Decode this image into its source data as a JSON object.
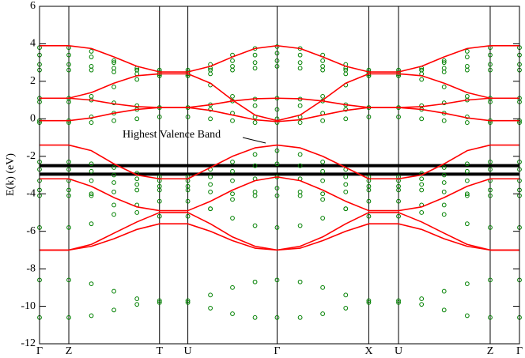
{
  "chart_data": {
    "type": "line",
    "ylabel": "E(k) (eV)",
    "annotation": "Highest Valence Band",
    "annotation_color": "#008000",
    "xlim": [
      0,
      1
    ],
    "ylim": [
      -12,
      6
    ],
    "yticks": [
      -12,
      -10,
      -8,
      -6,
      -4,
      -2,
      0,
      2,
      4,
      6
    ],
    "xticks": [
      {
        "value": 0,
        "label": "Γ"
      },
      {
        "value": 0.061,
        "label": "Z"
      },
      {
        "value": 0.25,
        "label": "T"
      },
      {
        "value": 0.309,
        "label": "U"
      },
      {
        "value": 0.495,
        "label": "Γ"
      },
      {
        "value": 0.686,
        "label": "X"
      },
      {
        "value": 0.748,
        "label": "U"
      },
      {
        "value": 0.939,
        "label": "Z"
      },
      {
        "value": 1,
        "label": "Γ"
      }
    ],
    "xgrid": true,
    "hlines": {
      "color": "#000000",
      "values": [
        -2.5,
        -2.95
      ]
    },
    "x": [
      0,
      0.061,
      0.108,
      0.155,
      0.203,
      0.25,
      0.309,
      0.356,
      0.402,
      0.449,
      0.495,
      0.543,
      0.59,
      0.638,
      0.686,
      0.748,
      0.796,
      0.843,
      0.891,
      0.939,
      1
    ],
    "series": [
      {
        "style": "markers",
        "color": "#008000",
        "values": [
          3.8,
          3.8,
          3.6,
          3.1,
          2.7,
          2.6,
          2.6,
          2.9,
          3.4,
          3.75,
          3.85,
          3.75,
          3.4,
          2.9,
          2.6,
          2.6,
          2.7,
          3.1,
          3.6,
          3.8,
          3.8
        ]
      },
      {
        "style": "markers",
        "color": "#008000",
        "values": [
          3.4,
          3.4,
          3.3,
          3.0,
          2.6,
          2.4,
          2.4,
          2.7,
          3.1,
          3.4,
          3.5,
          3.4,
          3.1,
          2.7,
          2.4,
          2.4,
          2.6,
          3.0,
          3.3,
          3.4,
          3.4
        ]
      },
      {
        "style": "markers",
        "color": "#008000",
        "values": [
          2.9,
          2.9,
          2.8,
          2.7,
          2.6,
          2.5,
          2.5,
          2.6,
          2.8,
          3.0,
          3.1,
          3.0,
          2.8,
          2.6,
          2.5,
          2.5,
          2.6,
          2.7,
          2.8,
          2.9,
          2.9
        ]
      },
      {
        "style": "markers",
        "color": "#008000",
        "values": [
          2.6,
          2.6,
          2.6,
          2.5,
          2.4,
          2.3,
          2.3,
          2.4,
          2.6,
          2.7,
          2.8,
          2.7,
          2.6,
          2.4,
          2.3,
          2.3,
          2.4,
          2.5,
          2.6,
          2.6,
          2.6
        ]
      },
      {
        "style": "markers",
        "color": "#008000",
        "values": [
          1.1,
          1.1,
          1.0,
          0.85,
          0.7,
          0.6,
          0.6,
          0.75,
          0.95,
          1.05,
          1.1,
          1.05,
          0.95,
          0.75,
          0.6,
          0.6,
          0.7,
          0.85,
          1.0,
          1.1,
          1.1
        ]
      },
      {
        "style": "markers",
        "color": "#008000",
        "values": [
          0.9,
          0.9,
          1.2,
          1.7,
          2.1,
          2.3,
          2.3,
          1.8,
          1.2,
          0.7,
          0.5,
          0.7,
          1.2,
          1.8,
          2.3,
          2.3,
          2.1,
          1.7,
          1.2,
          0.9,
          0.9
        ]
      },
      {
        "style": "markers",
        "color": "#008000",
        "values": [
          -0.1,
          -0.1,
          0.1,
          0.3,
          0.5,
          0.6,
          0.6,
          0.5,
          0.3,
          0.1,
          0.0,
          0.1,
          0.3,
          0.5,
          0.6,
          0.6,
          0.5,
          0.3,
          0.1,
          -0.1,
          -0.1
        ]
      },
      {
        "style": "markers",
        "color": "#008000",
        "values": [
          -0.2,
          -0.2,
          -0.2,
          -0.1,
          0.0,
          0.1,
          0.1,
          0.0,
          -0.1,
          -0.2,
          -0.2,
          -0.2,
          -0.1,
          0.0,
          0.1,
          0.1,
          0.0,
          -0.1,
          -0.2,
          -0.2,
          -0.2
        ]
      },
      {
        "style": "markers",
        "color": "#008000",
        "values": [
          -2.3,
          -2.3,
          -2.4,
          -2.6,
          -2.9,
          -3.1,
          -3.1,
          -2.7,
          -2.3,
          -1.9,
          -1.7,
          -1.9,
          -2.3,
          -2.7,
          -3.1,
          -3.1,
          -2.9,
          -2.6,
          -2.4,
          -2.3,
          -2.3
        ]
      },
      {
        "style": "markers",
        "color": "#008000",
        "values": [
          -2.7,
          -2.7,
          -2.8,
          -3.0,
          -3.2,
          -3.3,
          -3.3,
          -3.1,
          -2.8,
          -2.5,
          -2.4,
          -2.5,
          -2.8,
          -3.1,
          -3.3,
          -3.3,
          -3.2,
          -3.0,
          -2.8,
          -2.7,
          -2.7
        ]
      },
      {
        "style": "markers",
        "color": "#008000",
        "values": [
          -3.3,
          -3.3,
          -3.3,
          -3.4,
          -3.5,
          -3.6,
          -3.6,
          -3.5,
          -3.3,
          -3.2,
          -3.1,
          -3.2,
          -3.3,
          -3.5,
          -3.6,
          -3.6,
          -3.5,
          -3.4,
          -3.3,
          -3.3,
          -3.3
        ]
      },
      {
        "style": "markers",
        "color": "#008000",
        "values": [
          -4.1,
          -4.1,
          -4.0,
          -3.9,
          -3.8,
          -3.8,
          -3.8,
          -3.9,
          -4.0,
          -4.1,
          -4.1,
          -4.1,
          -4.0,
          -3.9,
          -3.8,
          -3.8,
          -3.8,
          -3.9,
          -4.0,
          -4.1,
          -4.1
        ]
      },
      {
        "style": "markers",
        "color": "#008000",
        "values": [
          -5.8,
          -5.8,
          -5.6,
          -5.1,
          -4.6,
          -4.4,
          -4.4,
          -4.8,
          -5.3,
          -5.7,
          -5.8,
          -5.7,
          -5.3,
          -4.8,
          -4.4,
          -4.4,
          -4.6,
          -5.1,
          -5.6,
          -5.8,
          -5.8
        ]
      },
      {
        "style": "markers",
        "color": "#008000",
        "values": [
          -3.8,
          -3.8,
          -4.1,
          -4.6,
          -5.0,
          -5.2,
          -5.2,
          -4.8,
          -4.3,
          -3.9,
          -3.7,
          -3.9,
          -4.3,
          -4.8,
          -5.2,
          -5.2,
          -5.0,
          -4.6,
          -4.1,
          -3.8,
          -3.8
        ]
      },
      {
        "style": "markers",
        "color": "#008000",
        "values": [
          -8.6,
          -8.6,
          -8.8,
          -9.2,
          -9.6,
          -9.7,
          -9.7,
          -9.4,
          -9.0,
          -8.7,
          -8.6,
          -8.7,
          -9.0,
          -9.4,
          -9.7,
          -9.7,
          -9.6,
          -9.2,
          -8.8,
          -8.6,
          -8.6
        ]
      },
      {
        "style": "markers",
        "color": "#008000",
        "values": [
          -10.6,
          -10.6,
          -10.5,
          -10.2,
          -9.9,
          -9.8,
          -9.8,
          -10.1,
          -10.4,
          -10.6,
          -10.6,
          -10.6,
          -10.4,
          -10.1,
          -9.8,
          -9.8,
          -9.9,
          -10.2,
          -10.5,
          -10.6,
          -10.6
        ]
      },
      {
        "style": "line",
        "color": "#ff0000",
        "values": [
          3.9,
          3.9,
          3.75,
          3.3,
          2.8,
          2.5,
          2.5,
          2.8,
          3.3,
          3.75,
          3.9,
          3.75,
          3.3,
          2.8,
          2.5,
          2.5,
          2.8,
          3.3,
          3.75,
          3.9,
          3.9
        ]
      },
      {
        "style": "line",
        "color": "#ff0000",
        "values": [
          1.1,
          1.1,
          1.4,
          1.9,
          2.3,
          2.4,
          2.4,
          1.9,
          1.0,
          0.2,
          -0.1,
          0.2,
          1.0,
          1.9,
          2.4,
          2.4,
          2.3,
          1.9,
          1.4,
          1.1,
          1.1
        ]
      },
      {
        "style": "line",
        "color": "#ff0000",
        "values": [
          -0.1,
          -0.1,
          0.05,
          0.3,
          0.5,
          0.6,
          0.6,
          0.75,
          0.95,
          1.07,
          1.1,
          1.07,
          0.95,
          0.75,
          0.6,
          0.6,
          0.5,
          0.3,
          0.05,
          -0.1,
          -0.1
        ]
      },
      {
        "style": "line",
        "color": "#ff0000",
        "values": [
          1.1,
          1.1,
          1.0,
          0.8,
          0.65,
          0.6,
          0.6,
          0.45,
          0.2,
          -0.05,
          -0.15,
          -0.05,
          0.2,
          0.45,
          0.6,
          0.6,
          0.65,
          0.8,
          1.0,
          1.1,
          1.1
        ]
      },
      {
        "style": "line",
        "color": "#ff0000",
        "values": [
          -1.4,
          -1.4,
          -1.7,
          -2.4,
          -3.0,
          -3.2,
          -3.2,
          -2.6,
          -2.0,
          -1.55,
          -1.4,
          -1.55,
          -2.0,
          -2.6,
          -3.2,
          -3.2,
          -3.0,
          -2.4,
          -1.7,
          -1.4,
          -1.4
        ]
      },
      {
        "style": "line",
        "color": "#ff0000",
        "values": [
          -3.2,
          -3.2,
          -3.6,
          -4.2,
          -4.7,
          -4.9,
          -4.9,
          -4.4,
          -3.8,
          -3.3,
          -3.1,
          -3.3,
          -3.8,
          -4.4,
          -4.9,
          -4.9,
          -4.7,
          -4.2,
          -3.6,
          -3.2,
          -3.2
        ]
      },
      {
        "style": "line",
        "color": "#ff0000",
        "values": [
          -7.0,
          -7.0,
          -6.7,
          -6.1,
          -5.5,
          -5.0,
          -5.0,
          -5.6,
          -6.3,
          -6.8,
          -7.0,
          -6.8,
          -6.3,
          -5.6,
          -5.0,
          -5.0,
          -5.5,
          -6.1,
          -6.7,
          -7.0,
          -7.0
        ]
      },
      {
        "style": "line",
        "color": "#ff0000",
        "values": [
          -7.0,
          -7.0,
          -6.8,
          -6.4,
          -5.9,
          -5.6,
          -5.6,
          -6.0,
          -6.5,
          -6.9,
          -7.0,
          -6.9,
          -6.5,
          -6.0,
          -5.6,
          -5.6,
          -5.9,
          -6.4,
          -6.8,
          -7.0,
          -7.0
        ]
      }
    ]
  }
}
